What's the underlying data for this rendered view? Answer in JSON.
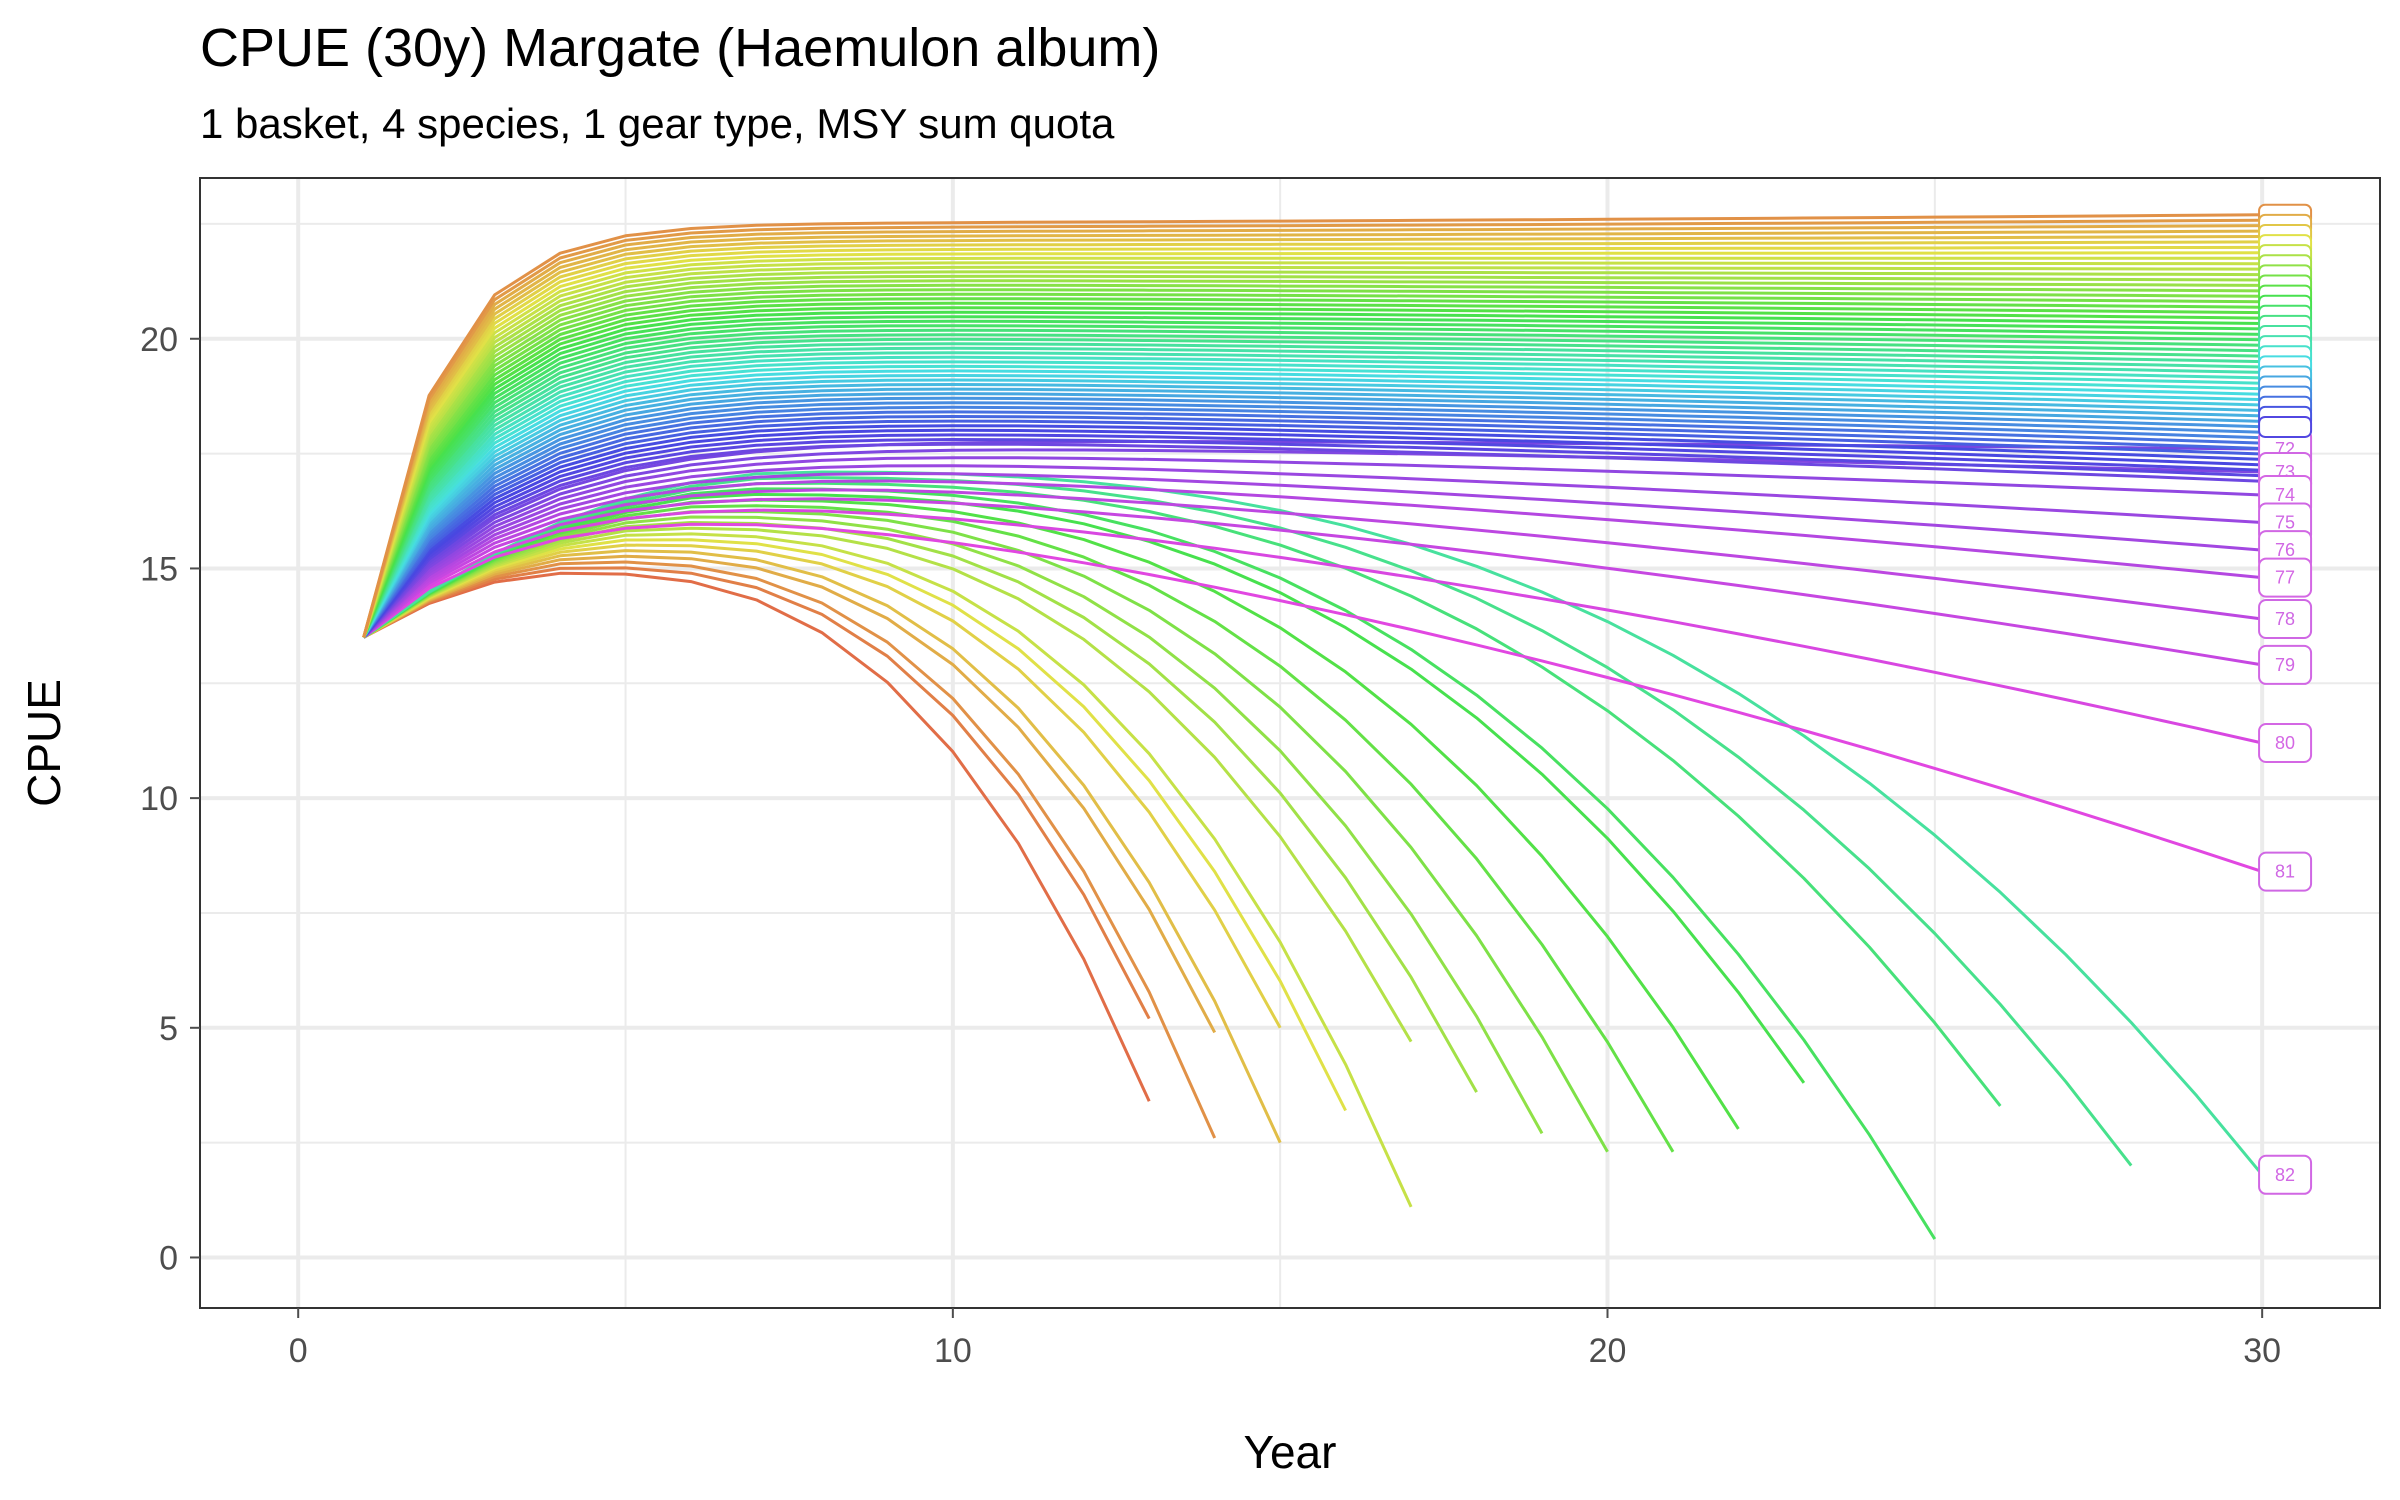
{
  "chart_data": {
    "type": "line",
    "title": "CPUE (30y) Margate (Haemulon album)",
    "subtitle": "1 basket, 4 species, 1 gear type, MSY sum quota",
    "xlabel": "Year",
    "ylabel": "CPUE",
    "xlim": [
      -1.5,
      31.8
    ],
    "ylim": [
      -1.1,
      23.5
    ],
    "xticks": [
      0,
      10,
      20,
      30
    ],
    "yticks": [
      0,
      5,
      10,
      15,
      20
    ],
    "grid": true,
    "legend": "none",
    "start": {
      "x": 1,
      "y": 13.5
    },
    "label_x": 30.35,
    "series_count": 83,
    "end_labels": [
      {
        "text": "72",
        "y": 17.6
      },
      {
        "text": "73",
        "y": 17.1
      },
      {
        "text": "74",
        "y": 16.6
      },
      {
        "text": "75",
        "y": 16.0
      },
      {
        "text": "76",
        "y": 15.4
      },
      {
        "text": "77",
        "y": 14.8
      },
      {
        "text": "78",
        "y": 13.9
      },
      {
        "text": "79",
        "y": 12.9
      },
      {
        "text": "80",
        "y": 11.2
      },
      {
        "text": "81",
        "y": 8.4
      },
      {
        "text": "82",
        "y": 1.8
      }
    ],
    "truncated_series": [
      {
        "end_year": 13,
        "end_value": 3.4
      },
      {
        "end_year": 13,
        "end_value": 5.2
      },
      {
        "end_year": 14,
        "end_value": 2.6
      },
      {
        "end_year": 14,
        "end_value": 4.9
      },
      {
        "end_year": 15,
        "end_value": 2.5
      },
      {
        "end_year": 15,
        "end_value": 5.0
      },
      {
        "end_year": 16,
        "end_value": 3.2
      },
      {
        "end_year": 17,
        "end_value": 1.1
      },
      {
        "end_year": 17,
        "end_value": 4.7
      },
      {
        "end_year": 18,
        "end_value": 3.6
      },
      {
        "end_year": 19,
        "end_value": 2.7
      },
      {
        "end_year": 20,
        "end_value": 2.3
      },
      {
        "end_year": 21,
        "end_value": 2.3
      },
      {
        "end_year": 22,
        "end_value": 2.8
      },
      {
        "end_year": 23,
        "end_value": 3.8
      },
      {
        "end_year": 25,
        "end_value": 0.4
      },
      {
        "end_year": 26,
        "end_value": 3.3
      },
      {
        "end_year": 28,
        "end_value": 2.0
      },
      {
        "end_year": 30,
        "end_value": 1.8
      }
    ],
    "full_series_final_range": [
      16.9,
      22.7
    ]
  },
  "colors": {
    "panel_border": "#333333",
    "grid": "#ebebeb",
    "tick": "#4d4d4d"
  }
}
